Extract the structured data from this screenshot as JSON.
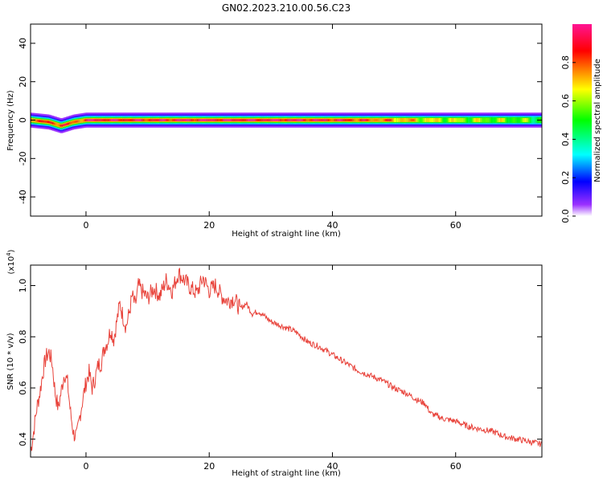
{
  "title": "GN02.2023.210.00.56.C23",
  "chart_data": [
    {
      "type": "heatmap",
      "xlabel": "Height of straight line (km)",
      "ylabel": "Frequency (Hz)",
      "xlim": [
        -9,
        74
      ],
      "ylim": [
        -50,
        50
      ],
      "xticks": [
        0,
        20,
        40,
        60
      ],
      "yticks": [
        -40,
        -20,
        0,
        20,
        40
      ],
      "ytick_labels": [
        "-40",
        "-20",
        "0",
        "20",
        "40"
      ],
      "colorbar": {
        "label": "Normalized spectral amplitude",
        "range": [
          0,
          1
        ],
        "ticks": [
          "0.0",
          "0.2",
          "0.4",
          "0.6",
          "0.8"
        ],
        "colors": [
          "#ffffff",
          "#9b30ff",
          "#0000ff",
          "#00ffff",
          "#00ff00",
          "#ffff00",
          "#ff0000",
          "#ff1493"
        ]
      },
      "ridge": {
        "description_values": "Energy concentrated near 0 Hz across full height range",
        "center_hz": [
          [
            -9,
            0
          ],
          [
            -6,
            -1
          ],
          [
            -4,
            -3
          ],
          [
            -2,
            -1
          ],
          [
            0,
            0
          ],
          [
            2,
            0
          ],
          [
            10,
            0
          ],
          [
            20,
            0
          ],
          [
            30,
            0
          ],
          [
            40,
            0
          ],
          [
            50,
            0
          ],
          [
            60,
            0
          ],
          [
            73,
            0
          ]
        ],
        "half_width_hz": 1.5,
        "peak_amplitude": [
          [
            -9,
            0.85
          ],
          [
            -6,
            0.8
          ],
          [
            -4,
            0.9
          ],
          [
            -2,
            0.75
          ],
          [
            1,
            0.95
          ],
          [
            10,
            0.9
          ],
          [
            20,
            0.95
          ],
          [
            30,
            0.95
          ],
          [
            40,
            0.9
          ],
          [
            50,
            0.75
          ],
          [
            55,
            0.65
          ],
          [
            60,
            0.6
          ],
          [
            70,
            0.55
          ],
          [
            73,
            0.5
          ]
        ]
      }
    },
    {
      "type": "line",
      "xlabel": "Height of straight line (km)",
      "ylabel": "SNR (10 * v/v)",
      "y_multiplier": "(x10",
      "y_multiplier_exp": "4",
      "y_multiplier_close": ")",
      "xlim": [
        -9,
        74
      ],
      "ylim": [
        0.33,
        1.08
      ],
      "xticks": [
        0,
        20,
        40,
        60
      ],
      "yticks": [
        0.4,
        0.6,
        0.8,
        1.0
      ],
      "ytick_labels": [
        "0.4",
        "0.6",
        "0.8",
        "1.0"
      ],
      "color": "#e8423a",
      "series": [
        {
          "x": [
            -9,
            -8.5,
            -8,
            -7.5,
            -7,
            -6.5,
            -6,
            -5.5,
            -5,
            -4.5,
            -4,
            -3.5,
            -3,
            -2.5,
            -2,
            -1.5,
            -1,
            -0.5,
            0,
            0.5,
            1,
            1.5,
            2,
            2.5,
            3,
            3.5,
            4,
            4.5,
            5,
            5.5,
            6,
            6.5,
            7,
            7.5,
            8,
            8.5,
            9,
            10,
            11,
            12,
            13,
            14,
            15,
            16,
            17,
            18,
            19,
            20,
            21,
            22,
            23,
            24,
            25,
            26,
            27,
            28,
            30,
            32,
            34,
            36,
            38,
            40,
            42,
            44,
            46,
            48,
            50,
            52,
            54,
            55,
            56,
            58,
            60,
            62,
            64,
            66,
            68,
            70,
            72,
            74
          ],
          "y": [
            0.35,
            0.43,
            0.52,
            0.58,
            0.66,
            0.72,
            0.74,
            0.7,
            0.58,
            0.52,
            0.59,
            0.66,
            0.62,
            0.5,
            0.42,
            0.41,
            0.49,
            0.56,
            0.62,
            0.66,
            0.6,
            0.64,
            0.69,
            0.7,
            0.76,
            0.78,
            0.83,
            0.79,
            0.86,
            0.93,
            0.88,
            0.84,
            0.89,
            0.96,
            0.92,
            1.0,
            0.98,
            0.95,
            0.99,
            0.96,
            1.02,
            0.98,
            1.05,
            1.02,
            0.99,
            0.97,
            1.03,
            0.98,
            1.0,
            0.96,
            0.94,
            0.95,
            0.91,
            0.93,
            0.89,
            0.9,
            0.86,
            0.84,
            0.82,
            0.78,
            0.76,
            0.73,
            0.7,
            0.67,
            0.65,
            0.63,
            0.6,
            0.58,
            0.55,
            0.54,
            0.5,
            0.48,
            0.47,
            0.45,
            0.44,
            0.43,
            0.41,
            0.4,
            0.39,
            0.38
          ]
        }
      ]
    }
  ]
}
